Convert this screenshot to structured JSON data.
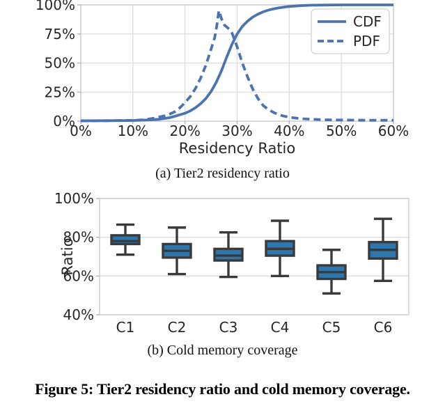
{
  "captions": {
    "a": "(a) Tier2 residency ratio",
    "b": "(b) Cold memory coverage",
    "figure": "Figure 5: Tier2 residency ratio and cold memory coverage."
  },
  "colors": {
    "line_blue": "#4C72B0",
    "box_fill": "#2E77AE",
    "box_edge": "#3A3A3A",
    "grid": "#DCDCDC",
    "spine": "#C8C8C8",
    "tick_mark": "#AFAFAF",
    "tick_text": "#262626",
    "legend_border": "#D3D3D3",
    "legend_bg": "#FFFFFF"
  },
  "chart_data": [
    {
      "type": "line",
      "title": "",
      "xlabel": "Residency Ratio",
      "ylabel": "",
      "xlim": [
        0,
        60
      ],
      "ylim": [
        0,
        100
      ],
      "grid": true,
      "legend_position": "upper right",
      "xticks": [
        0,
        10,
        20,
        30,
        40,
        50,
        60
      ],
      "xtick_labels": [
        "0%",
        "10%",
        "20%",
        "30%",
        "40%",
        "50%",
        "60%"
      ],
      "yticks": [
        0,
        25,
        50,
        75,
        100
      ],
      "ytick_labels": [
        "0%",
        "25%",
        "50%",
        "75%",
        "100%"
      ],
      "series": [
        {
          "name": "CDF",
          "line_style": "solid",
          "x": [
            0,
            5,
            10,
            12,
            14,
            15,
            16,
            17,
            18,
            19,
            20,
            21,
            22,
            23,
            24,
            25,
            26,
            27,
            28,
            29,
            30,
            31,
            32,
            33,
            34,
            35,
            36,
            37,
            38,
            39,
            40,
            42,
            44,
            46,
            48,
            50,
            55,
            60
          ],
          "y": [
            0.3,
            0.4,
            0.6,
            0.9,
            1.3,
            1.6,
            2.2,
            3,
            4.2,
            5.5,
            6.8,
            8.8,
            11.5,
            15,
            19.5,
            25.5,
            33.5,
            43.5,
            55,
            66,
            75,
            81.5,
            86,
            89.5,
            92,
            94,
            95.5,
            96.6,
            97.5,
            98.1,
            98.6,
            99.3,
            99.7,
            99.85,
            99.95,
            100,
            100,
            100
          ]
        },
        {
          "name": "PDF",
          "line_style": "dashed",
          "x": [
            0,
            5,
            10,
            12,
            14,
            16,
            17,
            18,
            19,
            20,
            21,
            22,
            23,
            24,
            25,
            25.7,
            26.1,
            26.5,
            27,
            27.5,
            28,
            28.5,
            29,
            29.5,
            30,
            30.5,
            31,
            32,
            33,
            34,
            35,
            36,
            37,
            38,
            39,
            40,
            42,
            44,
            46,
            48,
            50,
            55,
            60
          ],
          "y": [
            0.3,
            0.4,
            0.7,
            1.2,
            2.5,
            4.5,
            6,
            8,
            11.5,
            16,
            21,
            28,
            37,
            48,
            62,
            72,
            82,
            95,
            88,
            83,
            81,
            79,
            76,
            70,
            64,
            57,
            50,
            38,
            27.5,
            19.5,
            13.5,
            10,
            7.5,
            5.5,
            4.3,
            3.4,
            2.3,
            1.7,
            1.3,
            1.1,
            1,
            0.8,
            0.8
          ]
        }
      ]
    },
    {
      "type": "box",
      "title": "",
      "xlabel": "",
      "ylabel": "Ratio",
      "ylim": [
        40,
        100
      ],
      "grid": true,
      "yticks": [
        40,
        60,
        80,
        100
      ],
      "ytick_labels": [
        "40%",
        "60%",
        "80%",
        "100%"
      ],
      "categories": [
        "C1",
        "C2",
        "C3",
        "C4",
        "C5",
        "C6"
      ],
      "stats": [
        {
          "whisker_low": 71,
          "q1": 76.5,
          "median": 78,
          "q3": 81,
          "whisker_high": 86.5
        },
        {
          "whisker_low": 61,
          "q1": 69.5,
          "median": 73,
          "q3": 76.5,
          "whisker_high": 85
        },
        {
          "whisker_low": 59.5,
          "q1": 68,
          "median": 70.5,
          "q3": 74,
          "whisker_high": 82.5
        },
        {
          "whisker_low": 60,
          "q1": 70.5,
          "median": 74,
          "q3": 78,
          "whisker_high": 88.5
        },
        {
          "whisker_low": 51,
          "q1": 58.5,
          "median": 62,
          "q3": 65.5,
          "whisker_high": 73.5
        },
        {
          "whisker_low": 57.5,
          "q1": 69,
          "median": 73.5,
          "q3": 77.5,
          "whisker_high": 89.5
        }
      ]
    }
  ]
}
